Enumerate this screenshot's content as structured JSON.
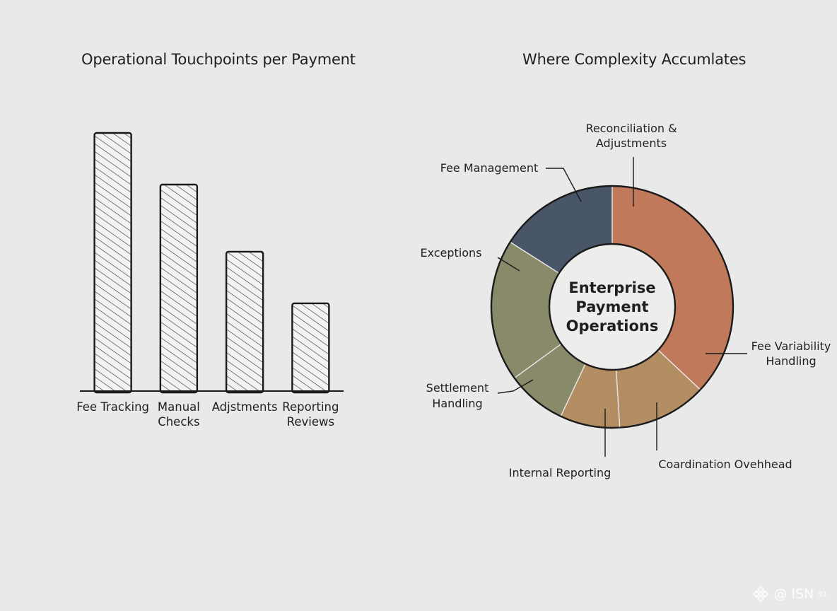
{
  "chart_data": [
    {
      "type": "bar",
      "title": "Operational Touchpoints per Payment",
      "categories": [
        [
          "Fee Tracking"
        ],
        [
          "Manual",
          "Checks"
        ],
        [
          "Adjstments"
        ],
        [
          "Reporting",
          "Reviews"
        ]
      ],
      "values": [
        100,
        80,
        54,
        34
      ],
      "ylim": [
        0,
        100
      ],
      "bar_fill": "hatched",
      "bar_stroke": "#1a1a1a",
      "grid": false
    },
    {
      "type": "pie",
      "variant": "donut",
      "title": "Where Complexity Accumlates",
      "center_label": [
        "Enterprise",
        "Payment",
        "Operations"
      ],
      "slices": [
        {
          "label": [
            "Reconciliation &",
            "Adjustments"
          ],
          "value": 37,
          "color": "#c07a5b"
        },
        {
          "label": [
            "Coardination Ovehhead"
          ],
          "value": 12,
          "color": "#b38e63"
        },
        {
          "label": [
            "Internal Reporting"
          ],
          "value": 8,
          "color": "#b38e63"
        },
        {
          "label": [
            "Settlement",
            "Handling"
          ],
          "value": 8,
          "color": "#888a69"
        },
        {
          "label": [
            "Exceptions"
          ],
          "value": 19,
          "color": "#888a69"
        },
        {
          "label": [
            "Fee Management"
          ],
          "value": 16,
          "color": "#485668"
        }
      ],
      "extra_labels": [
        {
          "label": [
            "Fee Variability",
            "Handling"
          ]
        }
      ]
    }
  ],
  "watermark": {
    "text": "@ ISN",
    "sup": "91"
  },
  "colors": {
    "background": "#e9e9e9",
    "ink": "#1a1a1a"
  }
}
